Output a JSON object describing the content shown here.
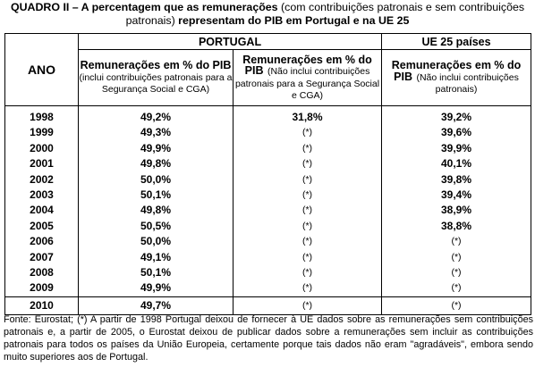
{
  "title": {
    "bold_part": "QUADRO II – A percentagem que as remunerações",
    "normal_part": "(com contribuições patronais e sem contribuições patronais)",
    "bold_end": "representam do PIB em Portugal e na UE 25"
  },
  "header": {
    "ano": "ANO",
    "portugal": "PORTUGAL",
    "ue": "UE 25 países",
    "col1_main": "Remunerações em % do PIB",
    "col1_sub": "(inclui contribuições patronais para a Segurança Social e CGA)",
    "col2_main": "Remunerações em % do PIB",
    "col2_sub": "(Não inclui contribuições patronais para a Segurança Social e CGA)",
    "col3_main": "Remunerações em % do PIB",
    "col3_sub": "(Não inclui contribuições patronais)"
  },
  "rows": [
    {
      "ano": "1998",
      "c1": "49,2%",
      "c2": "31,8%",
      "c3": "39,2%"
    },
    {
      "ano": "1999",
      "c1": "49,3%",
      "c2": "(*)",
      "c3": "39,6%"
    },
    {
      "ano": "2000",
      "c1": "49,9%",
      "c2": "(*)",
      "c3": "39,9%"
    },
    {
      "ano": "2001",
      "c1": "49,8%",
      "c2": "(*)",
      "c3": "40,1%"
    },
    {
      "ano": "2002",
      "c1": "50,0%",
      "c2": "(*)",
      "c3": "39,8%"
    },
    {
      "ano": "2003",
      "c1": "50,1%",
      "c2": "(*)",
      "c3": "39,4%"
    },
    {
      "ano": "2004",
      "c1": "49,8%",
      "c2": "(*)",
      "c3": "38,9%"
    },
    {
      "ano": "2005",
      "c1": "50,5%",
      "c2": "(*)",
      "c3": "38,8%"
    },
    {
      "ano": "2006",
      "c1": "50,0%",
      "c2": "(*)",
      "c3": "(*)"
    },
    {
      "ano": "2007",
      "c1": "49,1%",
      "c2": "(*)",
      "c3": "(*)"
    },
    {
      "ano": "2008",
      "c1": "50,1%",
      "c2": "(*)",
      "c3": "(*)"
    },
    {
      "ano": "2009",
      "c1": "49,9%",
      "c2": "(*)",
      "c3": "(*)"
    }
  ],
  "last_row": {
    "ano": "2010",
    "c1": "49,7%",
    "c2": "(*)",
    "c3": "(*)"
  },
  "footnote": "Fonte: Eurostat; (*) A partir de 1998 Portugal deixou de fornecer à UE dados sobre as remunerações sem contribuições patronais e,  a partir de 2005, o Eurostat deixou de publicar dados sobre a remunerações sem incluir as contribuições patronais para todos os países da União Europeia, certamente porque tais dados não eram \"agradáveis\", embora sendo muito superiores aos de Portugal."
}
